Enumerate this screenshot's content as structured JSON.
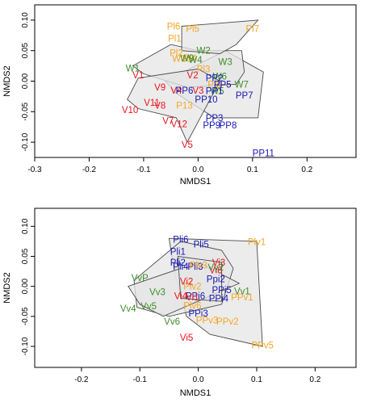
{
  "chart_data": [
    {
      "type": "scatter",
      "title": "",
      "xlabel": "NMDS1",
      "ylabel": "NMDS2",
      "xlim": [
        -0.3,
        0.29
      ],
      "ylim": [
        -0.125,
        0.125
      ],
      "xticks": [
        -0.3,
        -0.2,
        -0.1,
        0.0,
        0.1,
        0.2
      ],
      "xtick_labels": [
        "-0.3",
        "-0.2",
        "-0.1",
        "0.0",
        "0.1",
        "0.2"
      ],
      "yticks": [
        -0.1,
        -0.05,
        0.0,
        0.05,
        0.1
      ],
      "ytick_labels": [
        "-0.10",
        "-0.05",
        "0.00",
        "0.05",
        "0.10"
      ],
      "grid": false,
      "colors": {
        "orange": "#F5A623",
        "green": "#3E8E2A",
        "red": "#E8141C",
        "blue": "#1616B4",
        "hull_fill": "#e6e6e6",
        "hull_stroke": "#4a4a4a"
      },
      "hulls": [
        [
          [
            -0.06,
            0.0
          ],
          [
            0.05,
            0.05
          ],
          [
            0.07,
            0.04
          ],
          [
            0.12,
            0.015
          ],
          [
            0.11,
            -0.06
          ],
          [
            0.03,
            -0.06
          ],
          [
            -0.04,
            -0.02
          ]
        ],
        [
          [
            -0.12,
            0.025
          ],
          [
            -0.05,
            0.06
          ],
          [
            0.0,
            0.05
          ],
          [
            0.08,
            0.05
          ],
          [
            0.085,
            0.015
          ],
          [
            0.07,
            -0.005
          ],
          [
            -0.02,
            -0.01
          ],
          [
            -0.1,
            0.012
          ]
        ],
        [
          [
            -0.13,
            -0.03
          ],
          [
            -0.11,
            0.005
          ],
          [
            0.0,
            0.02
          ],
          [
            0.04,
            0.0
          ],
          [
            -0.02,
            -0.1
          ],
          [
            -0.04,
            -0.06
          ],
          [
            -0.11,
            -0.045
          ]
        ],
        [
          [
            -0.03,
            0.09
          ],
          [
            0.11,
            0.1
          ],
          [
            0.07,
            0.06
          ],
          [
            0.04,
            0.045
          ],
          [
            -0.03,
            0.05
          ]
        ]
      ],
      "points": [
        {
          "label": "Pl6",
          "x": -0.045,
          "y": 0.09,
          "color": "orange"
        },
        {
          "label": "Pl5",
          "x": -0.01,
          "y": 0.086,
          "color": "orange"
        },
        {
          "label": "Pl7",
          "x": 0.1,
          "y": 0.086,
          "color": "orange"
        },
        {
          "label": "Pl1",
          "x": -0.043,
          "y": 0.07,
          "color": "orange"
        },
        {
          "label": "Pl2",
          "x": -0.04,
          "y": 0.046,
          "color": "orange"
        },
        {
          "label": "W10",
          "x": -0.03,
          "y": 0.037,
          "color": "orange"
        },
        {
          "label": "Pl4",
          "x": -0.015,
          "y": 0.038,
          "color": "orange"
        },
        {
          "label": "Pl3",
          "x": 0.01,
          "y": 0.02,
          "color": "orange"
        },
        {
          "label": "Pl8",
          "x": 0.03,
          "y": -0.005,
          "color": "orange"
        },
        {
          "label": "P13",
          "x": -0.025,
          "y": -0.04,
          "color": "orange"
        },
        {
          "label": "W2",
          "x": 0.01,
          "y": 0.05,
          "color": "green"
        },
        {
          "label": "W9",
          "x": -0.02,
          "y": 0.038,
          "color": "green"
        },
        {
          "label": "W3",
          "x": 0.05,
          "y": 0.032,
          "color": "green"
        },
        {
          "label": "W4",
          "x": -0.005,
          "y": 0.035,
          "color": "green"
        },
        {
          "label": "W1",
          "x": -0.12,
          "y": 0.021,
          "color": "green"
        },
        {
          "label": "W6",
          "x": 0.04,
          "y": 0.008,
          "color": "green"
        },
        {
          "label": "W7",
          "x": 0.08,
          "y": -0.005,
          "color": "green"
        },
        {
          "label": "W5",
          "x": 0.035,
          "y": -0.016,
          "color": "green"
        },
        {
          "label": "V1",
          "x": -0.11,
          "y": 0.01,
          "color": "red"
        },
        {
          "label": "V2",
          "x": -0.01,
          "y": 0.01,
          "color": "red"
        },
        {
          "label": "V9",
          "x": -0.07,
          "y": -0.01,
          "color": "red"
        },
        {
          "label": "V4",
          "x": -0.04,
          "y": -0.015,
          "color": "red"
        },
        {
          "label": "V3",
          "x": 0.0,
          "y": -0.015,
          "color": "red"
        },
        {
          "label": "V11",
          "x": -0.085,
          "y": -0.035,
          "color": "red"
        },
        {
          "label": "V8",
          "x": -0.07,
          "y": -0.04,
          "color": "red"
        },
        {
          "label": "V10",
          "x": -0.125,
          "y": -0.047,
          "color": "red"
        },
        {
          "label": "V7",
          "x": -0.055,
          "y": -0.065,
          "color": "red"
        },
        {
          "label": "V12",
          "x": -0.035,
          "y": -0.07,
          "color": "red"
        },
        {
          "label": "V5",
          "x": -0.02,
          "y": -0.104,
          "color": "red"
        },
        {
          "label": "PP2",
          "x": 0.03,
          "y": 0.005,
          "color": "blue"
        },
        {
          "label": "PP5",
          "x": 0.045,
          "y": -0.005,
          "color": "blue"
        },
        {
          "label": "PP6",
          "x": -0.025,
          "y": -0.015,
          "color": "blue"
        },
        {
          "label": "PP1",
          "x": 0.03,
          "y": -0.016,
          "color": "blue"
        },
        {
          "label": "PP10",
          "x": 0.015,
          "y": -0.03,
          "color": "blue"
        },
        {
          "label": "PP7",
          "x": 0.085,
          "y": -0.023,
          "color": "blue"
        },
        {
          "label": "PP3",
          "x": 0.03,
          "y": -0.06,
          "color": "blue"
        },
        {
          "label": "PP9",
          "x": 0.025,
          "y": -0.072,
          "color": "blue"
        },
        {
          "label": "PP8",
          "x": 0.055,
          "y": -0.072,
          "color": "blue"
        },
        {
          "label": "PP11",
          "x": 0.12,
          "y": -0.118,
          "color": "blue"
        }
      ]
    },
    {
      "type": "scatter",
      "title": "",
      "xlabel": "NMDS1",
      "ylabel": "NMDS2",
      "xlim": [
        -0.28,
        0.27
      ],
      "ylim": [
        -0.135,
        0.13
      ],
      "xticks": [
        -0.2,
        -0.1,
        0.0,
        0.1,
        0.2
      ],
      "xtick_labels": [
        "-0.2",
        "-0.1",
        "0.0",
        "0.1",
        "0.2"
      ],
      "yticks": [
        -0.1,
        -0.05,
        0.0,
        0.05,
        0.1
      ],
      "ytick_labels": [
        "-0.10",
        "-0.05",
        "0.00",
        "0.05",
        "0.10"
      ],
      "grid": false,
      "colors": {
        "orange": "#F5A623",
        "green": "#3E8E2A",
        "red": "#E8141C",
        "blue": "#1616B4",
        "hull_fill": "#e6e6e6",
        "hull_stroke": "#4a4a4a"
      },
      "hulls": [
        [
          [
            -0.05,
            0.08
          ],
          [
            0.1,
            0.075
          ],
          [
            0.11,
            -0.1
          ],
          [
            0.02,
            -0.08
          ],
          [
            -0.02,
            -0.05
          ],
          [
            -0.04,
            0.02
          ]
        ],
        [
          [
            -0.11,
            0.01
          ],
          [
            -0.03,
            0.075
          ],
          [
            0.04,
            0.06
          ],
          [
            0.06,
            0.03
          ],
          [
            0.04,
            -0.03
          ],
          [
            -0.05,
            -0.05
          ],
          [
            -0.105,
            -0.035
          ]
        ],
        [
          [
            -0.12,
            0.0
          ],
          [
            0.0,
            0.04
          ],
          [
            0.07,
            0.005
          ],
          [
            -0.06,
            -0.05
          ],
          [
            -0.1,
            -0.03
          ]
        ],
        [
          [
            -0.035,
            0.05
          ],
          [
            0.04,
            0.04
          ],
          [
            0.04,
            -0.025
          ],
          [
            -0.03,
            -0.02
          ]
        ]
      ],
      "points": [
        {
          "label": "Pli6",
          "x": -0.03,
          "y": 0.078,
          "color": "blue"
        },
        {
          "label": "Pli5",
          "x": 0.005,
          "y": 0.07,
          "color": "blue"
        },
        {
          "label": "Pli1",
          "x": -0.035,
          "y": 0.058,
          "color": "blue"
        },
        {
          "label": "Pli2",
          "x": -0.035,
          "y": 0.04,
          "color": "blue"
        },
        {
          "label": "Pli3",
          "x": -0.005,
          "y": 0.033,
          "color": "blue"
        },
        {
          "label": "Pli4",
          "x": -0.03,
          "y": 0.033,
          "color": "blue"
        },
        {
          "label": "Ppi2",
          "x": 0.03,
          "y": 0.012,
          "color": "blue"
        },
        {
          "label": "PPi5",
          "x": 0.04,
          "y": -0.006,
          "color": "blue"
        },
        {
          "label": "PPi6",
          "x": -0.005,
          "y": -0.016,
          "color": "blue"
        },
        {
          "label": "PPi4",
          "x": 0.035,
          "y": -0.02,
          "color": "blue"
        },
        {
          "label": "PPi3",
          "x": 0.0,
          "y": -0.045,
          "color": "blue"
        },
        {
          "label": "Plv1",
          "x": 0.1,
          "y": 0.074,
          "color": "orange"
        },
        {
          "label": "Plv3",
          "x": 0.0,
          "y": 0.035,
          "color": "orange"
        },
        {
          "label": "Plv6",
          "x": -0.01,
          "y": -0.032,
          "color": "orange"
        },
        {
          "label": "Plv2",
          "x": -0.01,
          "y": 0.0,
          "color": "orange"
        },
        {
          "label": "PPv1",
          "x": 0.075,
          "y": -0.018,
          "color": "orange"
        },
        {
          "label": "PPv3",
          "x": 0.015,
          "y": -0.056,
          "color": "orange"
        },
        {
          "label": "PPv2",
          "x": 0.05,
          "y": -0.058,
          "color": "orange"
        },
        {
          "label": "PPv5",
          "x": 0.11,
          "y": -0.098,
          "color": "orange"
        },
        {
          "label": "Vi2",
          "x": -0.02,
          "y": 0.008,
          "color": "red"
        },
        {
          "label": "Vi3",
          "x": 0.035,
          "y": 0.04,
          "color": "red"
        },
        {
          "label": "Vi6",
          "x": 0.03,
          "y": 0.027,
          "color": "red"
        },
        {
          "label": "Vi4",
          "x": -0.03,
          "y": -0.016,
          "color": "red"
        },
        {
          "label": "Vi1",
          "x": -0.01,
          "y": -0.018,
          "color": "red"
        },
        {
          "label": "Vi5",
          "x": -0.02,
          "y": -0.085,
          "color": "red"
        },
        {
          "label": "Vv2",
          "x": 0.03,
          "y": 0.032,
          "color": "green"
        },
        {
          "label": "Vv1",
          "x": 0.075,
          "y": -0.008,
          "color": "green"
        },
        {
          "label": "Vv3",
          "x": -0.07,
          "y": -0.009,
          "color": "green"
        },
        {
          "label": "VvP",
          "x": -0.1,
          "y": 0.014,
          "color": "green"
        },
        {
          "label": "Vv4",
          "x": -0.12,
          "y": -0.037,
          "color": "green"
        },
        {
          "label": "Vv5",
          "x": -0.085,
          "y": -0.033,
          "color": "green"
        },
        {
          "label": "Vv6",
          "x": -0.045,
          "y": -0.058,
          "color": "green"
        }
      ]
    }
  ]
}
